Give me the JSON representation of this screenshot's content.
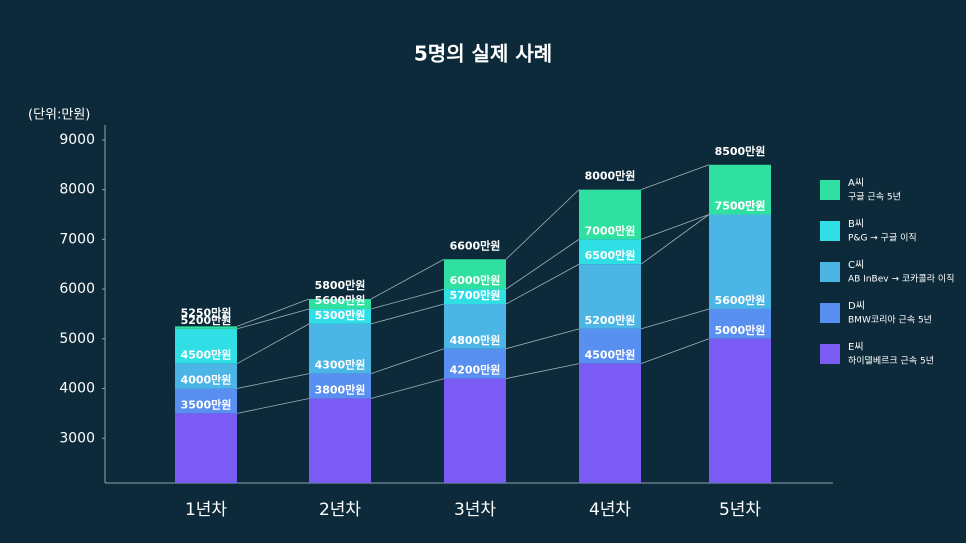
{
  "chart_data": {
    "type": "bar",
    "title": "5명의 실제 사례",
    "y_label": "(단위:만원)",
    "categories": [
      "1년차",
      "2년차",
      "3년차",
      "4년차",
      "5년차"
    ],
    "ylim": [
      2100,
      9300
    ],
    "yticks": [
      3000,
      4000,
      5000,
      6000,
      7000,
      8000,
      9000
    ],
    "series": [
      {
        "name": "A씨",
        "description": "구글 근속 5년",
        "color": "#2fe0a0",
        "values": [
          5250,
          5800,
          6600,
          8000,
          8500
        ],
        "value_labels": [
          "5250만원",
          "5800만원",
          "6600만원",
          "8000만원",
          "8500만원"
        ]
      },
      {
        "name": "B씨",
        "description": "P&G → 구글 이직",
        "color": "#30dfe6",
        "values": [
          5200,
          5600,
          6000,
          7000,
          7500
        ],
        "value_labels": [
          "5200만원",
          "5600만원",
          "6000만원",
          "7000만원",
          "7500만원"
        ]
      },
      {
        "name": "C씨",
        "description": "AB InBev → 코카콜라 이직",
        "color": "#4bb5e6",
        "values": [
          4500,
          5300,
          5700,
          6500,
          7500
        ],
        "value_labels": [
          "4500만원",
          "5300만원",
          "5700만원",
          "6500만원",
          "7500만원"
        ]
      },
      {
        "name": "D씨",
        "description": "BMW코리아 근속 5년",
        "color": "#5a8ff2",
        "values": [
          4000,
          4300,
          4800,
          5200,
          5600
        ],
        "value_labels": [
          "4000만원",
          "4300만원",
          "4800만원",
          "5200만원",
          "5600만원"
        ]
      },
      {
        "name": "E씨",
        "description": "하이델베르크 근속 5년",
        "color": "#7a5cf5",
        "values": [
          3500,
          3800,
          4200,
          4500,
          5000
        ],
        "value_labels": [
          "3500만원",
          "3800만원",
          "4200만원",
          "4500만원",
          "5000만원"
        ]
      }
    ]
  }
}
